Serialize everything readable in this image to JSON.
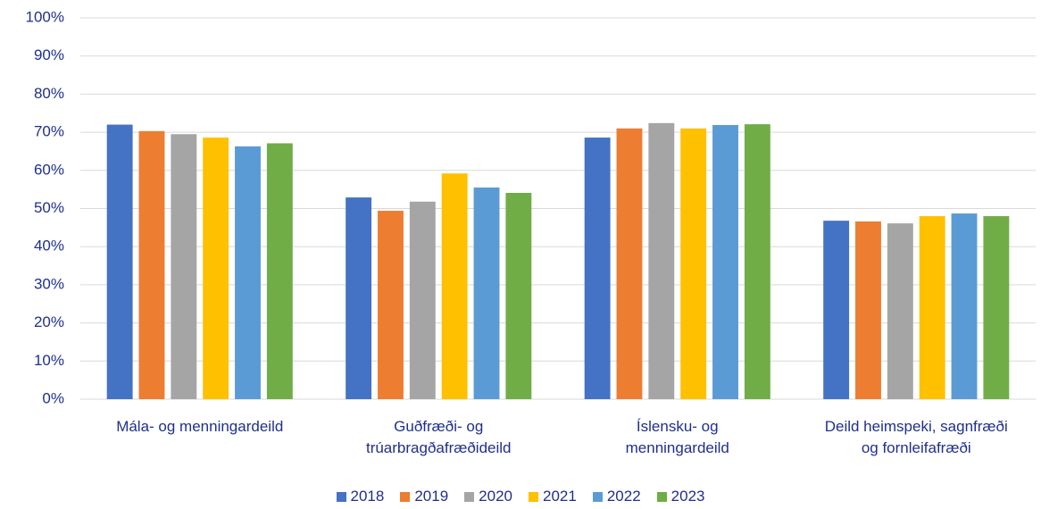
{
  "chart_data": {
    "type": "bar",
    "categories": [
      "Mála- og menningardeild",
      "Guðfræði- og\ntrúarbragðafræðideild",
      "Íslensku- og\nmenningardeild",
      "Deild heimspeki, sagnfræði\nog fornleifafræði"
    ],
    "series": [
      {
        "name": "2018",
        "color": "#4472c4",
        "values": [
          72,
          52.9,
          68.6,
          46.8
        ]
      },
      {
        "name": "2019",
        "color": "#ed7d31",
        "values": [
          70.3,
          49.4,
          71,
          46.6
        ]
      },
      {
        "name": "2020",
        "color": "#a5a5a5",
        "values": [
          69.5,
          51.8,
          72.4,
          46.1
        ]
      },
      {
        "name": "2021",
        "color": "#ffc000",
        "values": [
          68.6,
          59.2,
          71,
          48
        ]
      },
      {
        "name": "2022",
        "color": "#5b9bd5",
        "values": [
          66.3,
          55.5,
          71.9,
          48.7
        ]
      },
      {
        "name": "2023",
        "color": "#70ad47",
        "values": [
          67.1,
          54.1,
          72.1,
          48
        ]
      }
    ],
    "ylim": [
      0,
      100
    ],
    "yticks": [
      {
        "value": 0,
        "label": "0%"
      },
      {
        "value": 10,
        "label": "10%"
      },
      {
        "value": 20,
        "label": "20%"
      },
      {
        "value": 30,
        "label": "30%"
      },
      {
        "value": 40,
        "label": "40%"
      },
      {
        "value": 50,
        "label": "50%"
      },
      {
        "value": 60,
        "label": "60%"
      },
      {
        "value": 70,
        "label": "70%"
      },
      {
        "value": 80,
        "label": "80%"
      },
      {
        "value": 90,
        "label": "90%"
      },
      {
        "value": 100,
        "label": "100%"
      }
    ],
    "grid": true,
    "legend": "bottom"
  }
}
